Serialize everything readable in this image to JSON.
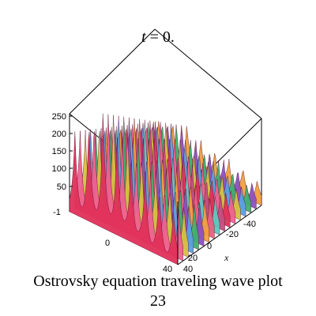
{
  "chart_data": {
    "type": "surface",
    "title": "t = 0.",
    "title_var": "t",
    "title_rest": " = 0.",
    "z_ticks": [
      "250",
      "200",
      "150",
      "100",
      "50"
    ],
    "y_ticks": [
      "-1",
      "0"
    ],
    "x_ticks": [
      "-40",
      "-20",
      "0",
      "20",
      "40"
    ],
    "extra_tick": "40",
    "xlabel": "x",
    "grid": false,
    "legend": "none",
    "colors": [
      "#e0305a",
      "#f06090",
      "#d8c040",
      "#5aa0e0",
      "#40b070",
      "#8a50c0",
      "#f0a040",
      "#e86080",
      "#60c8c0",
      "#c05080"
    ]
  },
  "caption": {
    "line1": "Ostrovsky equation  traveling wave plot",
    "line2": "23"
  }
}
